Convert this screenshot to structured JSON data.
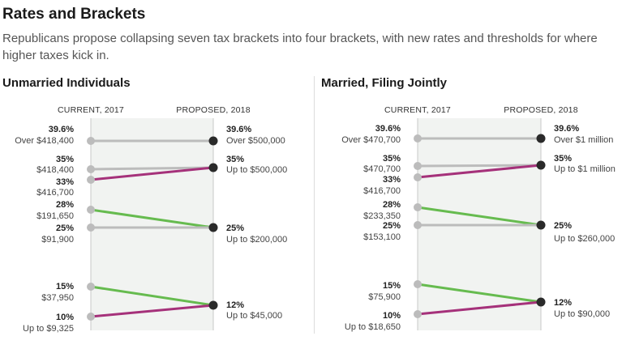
{
  "header": {
    "title": "Rates and Brackets",
    "subtitle": "Republicans propose collapsing seven tax brackets into four brackets, with new rates and thresholds for where higher taxes kick in."
  },
  "colors": {
    "rate_up": "#a5317a",
    "rate_down": "#66bb4f",
    "unchanged": "#bcbcbc",
    "current_dot": "#bcbcbc",
    "proposed_dot": "#2a2a2a",
    "band": "#f1f3f1"
  },
  "chart_data": [
    {
      "type": "slope",
      "title": "Unmarried Individuals",
      "current_label": "CURRENT, 2017",
      "proposed_label": "PROPOSED, 2018",
      "current": [
        {
          "rate": "39.6%",
          "threshold": "Over $418,400"
        },
        {
          "rate": "35%",
          "threshold": "$418,400"
        },
        {
          "rate": "33%",
          "threshold": "$416,700"
        },
        {
          "rate": "28%",
          "threshold": "$191,650"
        },
        {
          "rate": "25%",
          "threshold": "$91,900"
        },
        {
          "rate": "15%",
          "threshold": "$37,950"
        },
        {
          "rate": "10%",
          "threshold": "Up to $9,325"
        }
      ],
      "proposed": [
        {
          "rate": "39.6%",
          "threshold": "Over $500,000"
        },
        {
          "rate": "35%",
          "threshold": "Up to $500,000"
        },
        {
          "rate": "25%",
          "threshold": "Up to $200,000"
        },
        {
          "rate": "12%",
          "threshold": "Up to $45,000"
        }
      ],
      "links": [
        {
          "from": 0,
          "to": 0,
          "change": "unchanged"
        },
        {
          "from": 1,
          "to": 1,
          "change": "unchanged"
        },
        {
          "from": 2,
          "to": 1,
          "change": "up"
        },
        {
          "from": 3,
          "to": 2,
          "change": "down"
        },
        {
          "from": 4,
          "to": 2,
          "change": "unchanged"
        },
        {
          "from": 5,
          "to": 3,
          "change": "down"
        },
        {
          "from": 6,
          "to": 3,
          "change": "up"
        }
      ]
    },
    {
      "type": "slope",
      "title": "Married, Filing Jointly",
      "current_label": "CURRENT, 2017",
      "proposed_label": "PROPOSED, 2018",
      "current": [
        {
          "rate": "39.6%",
          "threshold": "Over $470,700"
        },
        {
          "rate": "35%",
          "threshold": "$470,700"
        },
        {
          "rate": "33%",
          "threshold": "$416,700"
        },
        {
          "rate": "28%",
          "threshold": "$233,350"
        },
        {
          "rate": "25%",
          "threshold": "$153,100"
        },
        {
          "rate": "15%",
          "threshold": "$75,900"
        },
        {
          "rate": "10%",
          "threshold": "Up to $18,650"
        }
      ],
      "proposed": [
        {
          "rate": "39.6%",
          "threshold": "Over $1 million"
        },
        {
          "rate": "35%",
          "threshold": "Up to $1 million"
        },
        {
          "rate": "25%",
          "threshold": "Up to $260,000"
        },
        {
          "rate": "12%",
          "threshold": "Up to $90,000"
        }
      ],
      "links": [
        {
          "from": 0,
          "to": 0,
          "change": "unchanged"
        },
        {
          "from": 1,
          "to": 1,
          "change": "unchanged"
        },
        {
          "from": 2,
          "to": 1,
          "change": "up"
        },
        {
          "from": 3,
          "to": 2,
          "change": "down"
        },
        {
          "from": 4,
          "to": 2,
          "change": "unchanged"
        },
        {
          "from": 5,
          "to": 3,
          "change": "down"
        },
        {
          "from": 6,
          "to": 3,
          "change": "up"
        }
      ]
    }
  ]
}
